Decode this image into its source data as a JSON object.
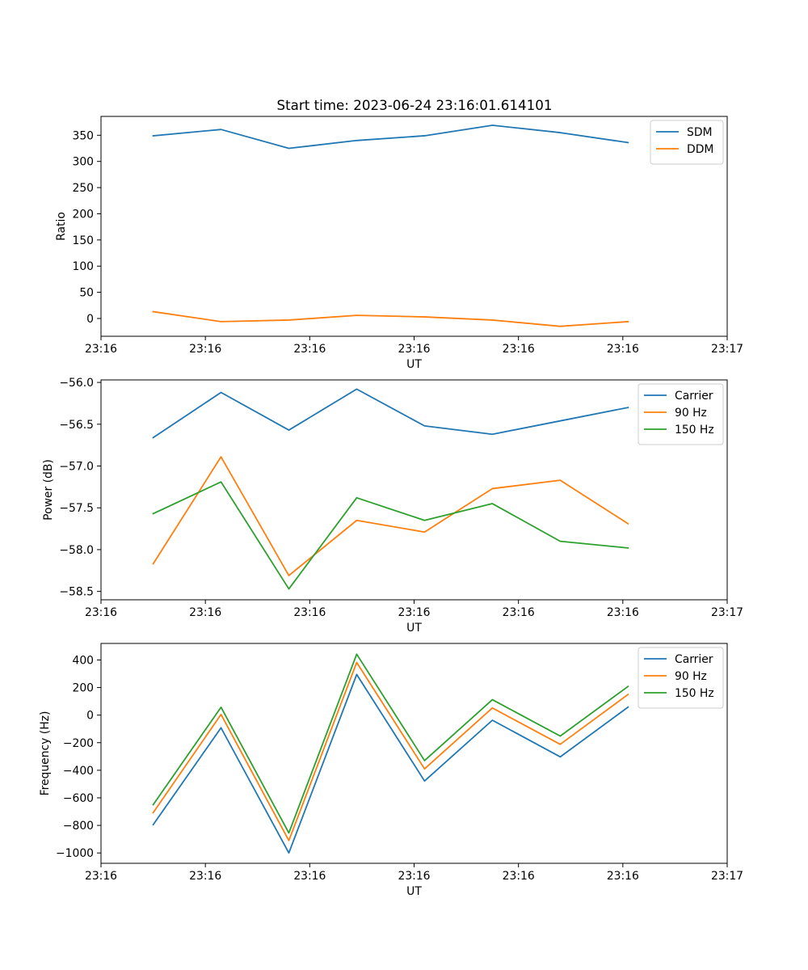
{
  "figure": {
    "title": "Start time: 2023-06-24 23:16:01.614101"
  },
  "chart_data": [
    {
      "type": "line",
      "title": "Start time: 2023-06-24 23:16:01.614101",
      "xlabel": "UT",
      "ylabel": "Ratio",
      "x": [
        0.5,
        1.15,
        1.8,
        2.45,
        3.1,
        3.75,
        4.4,
        5.05
      ],
      "xlim": [
        0,
        6
      ],
      "xticks": [
        0,
        1,
        2,
        3,
        4,
        5,
        6
      ],
      "xtick_labels": [
        "23:16",
        "23:16",
        "23:16",
        "23:16",
        "23:16",
        "23:16",
        "23:17"
      ],
      "ylim": [
        -34,
        386
      ],
      "yticks": [
        0,
        50,
        100,
        150,
        200,
        250,
        300,
        350
      ],
      "ytick_labels": [
        "0",
        "50",
        "100",
        "150",
        "200",
        "250",
        "300",
        "350"
      ],
      "grid": false,
      "legend_position": "upper-right",
      "series": [
        {
          "name": "SDM",
          "color": "#1f77b4",
          "values": [
            349,
            361,
            325,
            340,
            349,
            369,
            355,
            336
          ]
        },
        {
          "name": "DDM",
          "color": "#ff7f0e",
          "values": [
            13,
            -6,
            -3,
            6,
            3,
            -3,
            -15,
            -6
          ]
        }
      ]
    },
    {
      "type": "line",
      "xlabel": "UT",
      "ylabel": "Power (dB)",
      "x": [
        0.5,
        1.15,
        1.8,
        2.45,
        3.1,
        3.75,
        4.4,
        5.05
      ],
      "xlim": [
        0,
        6
      ],
      "xticks": [
        0,
        1,
        2,
        3,
        4,
        5,
        6
      ],
      "xtick_labels": [
        "23:16",
        "23:16",
        "23:16",
        "23:16",
        "23:16",
        "23:16",
        "23:17"
      ],
      "ylim": [
        -58.6,
        -55.97
      ],
      "yticks": [
        -58.5,
        -58.0,
        -57.5,
        -57.0,
        -56.5,
        -56.0
      ],
      "ytick_labels": [
        "−58.5",
        "−58.0",
        "−57.5",
        "−57.0",
        "−56.5",
        "−56.0"
      ],
      "grid": false,
      "legend_position": "upper-right",
      "series": [
        {
          "name": "Carrier",
          "color": "#1f77b4",
          "values": [
            -56.66,
            -56.12,
            -56.57,
            -56.08,
            -56.52,
            -56.62,
            -56.46,
            -56.3
          ]
        },
        {
          "name": "90 Hz",
          "color": "#ff7f0e",
          "values": [
            -58.17,
            -56.89,
            -58.31,
            -57.65,
            -57.79,
            -57.27,
            -57.17,
            -57.69
          ]
        },
        {
          "name": "150 Hz",
          "color": "#2ca02c",
          "values": [
            -57.57,
            -57.19,
            -58.47,
            -57.38,
            -57.65,
            -57.45,
            -57.9,
            -57.98
          ]
        }
      ]
    },
    {
      "type": "line",
      "xlabel": "UT",
      "ylabel": "Frequency (Hz)",
      "x": [
        0.5,
        1.15,
        1.8,
        2.45,
        3.1,
        3.75,
        4.4,
        5.05
      ],
      "xlim": [
        0,
        6
      ],
      "xticks": [
        0,
        1,
        2,
        3,
        4,
        5,
        6
      ],
      "xtick_labels": [
        "23:16",
        "23:16",
        "23:16",
        "23:16",
        "23:16",
        "23:16",
        "23:17"
      ],
      "ylim": [
        -1075,
        520
      ],
      "yticks": [
        -1000,
        -800,
        -600,
        -400,
        -200,
        0,
        200,
        400
      ],
      "ytick_labels": [
        "−1000",
        "−800",
        "−600",
        "−400",
        "−200",
        "0",
        "200",
        "400"
      ],
      "grid": false,
      "legend_position": "upper-right",
      "series": [
        {
          "name": "Carrier",
          "color": "#1f77b4",
          "values": [
            -795,
            -92,
            -1000,
            295,
            -478,
            -37,
            -303,
            58
          ]
        },
        {
          "name": "90 Hz",
          "color": "#ff7f0e",
          "values": [
            -708,
            5,
            -910,
            382,
            -390,
            52,
            -212,
            150
          ]
        },
        {
          "name": "150 Hz",
          "color": "#2ca02c",
          "values": [
            -650,
            57,
            -855,
            442,
            -330,
            112,
            -152,
            208
          ]
        }
      ]
    }
  ]
}
